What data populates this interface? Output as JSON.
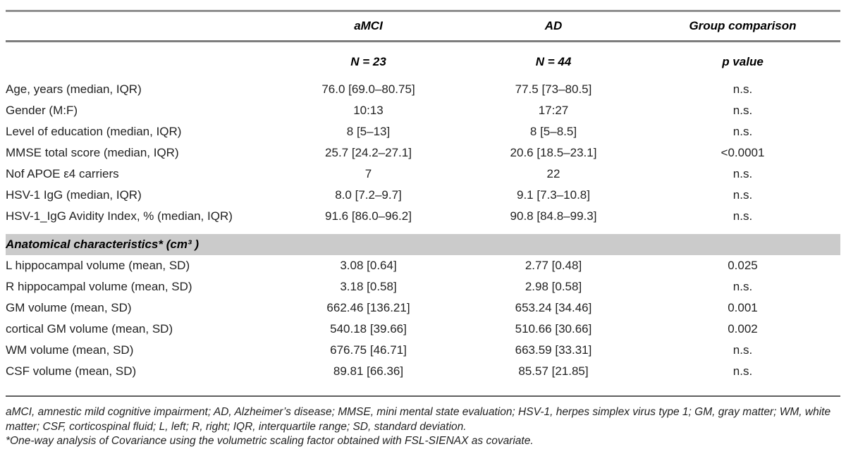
{
  "table": {
    "header": {
      "amci": "aMCI",
      "ad": "AD",
      "group": "Group comparison",
      "amci_n": "N = 23",
      "ad_n": "N = 44",
      "p": "p value"
    },
    "rows": [
      {
        "label": "Age, years (median, IQR)",
        "amci": "76.0 [69.0–80.75]",
        "ad": "77.5 [73–80.5]",
        "p": "n.s."
      },
      {
        "label": "Gender (M:F)",
        "amci": "10:13",
        "ad": "17:27",
        "p": "n.s."
      },
      {
        "label": "Level of education (median, IQR)",
        "amci": "8 [5–13]",
        "ad": "8 [5–8.5]",
        "p": "n.s."
      },
      {
        "label": "MMSE total score (median, IQR)",
        "amci": "25.7 [24.2–27.1]",
        "ad": "20.6 [18.5–23.1]",
        "p": "<0.0001"
      },
      {
        "label": "Nof APOE ε4 carriers",
        "amci": "7",
        "ad": "22",
        "p": "n.s."
      },
      {
        "label": "HSV-1 IgG (median, IQR)",
        "amci": "8.0 [7.2–9.7]",
        "ad": "9.1 [7.3–10.8]",
        "p": "n.s."
      },
      {
        "label": "HSV-1_IgG Avidity Index, % (median, IQR)",
        "amci": "91.6 [86.0–96.2]",
        "ad": "90.8 [84.8–99.3]",
        "p": "n.s."
      }
    ],
    "section_header": "Anatomical characteristics* (cm³ )",
    "anatomy_rows": [
      {
        "label": "L hippocampal volume (mean, SD)",
        "amci": "3.08 [0.64]",
        "ad": "2.77 [0.48]",
        "p": "0.025"
      },
      {
        "label": "R hippocampal volume (mean, SD)",
        "amci": "3.18 [0.58]",
        "ad": "2.98 [0.58]",
        "p": "n.s."
      },
      {
        "label": "GM volume (mean, SD)",
        "amci": "662.46 [136.21]",
        "ad": "653.24 [34.46]",
        "p": "0.001"
      },
      {
        "label": "cortical GM volume (mean, SD)",
        "amci": "540.18 [39.66]",
        "ad": "510.66 [30.66]",
        "p": "0.002"
      },
      {
        "label": "WM volume (mean, SD)",
        "amci": "676.75 [46.71]",
        "ad": "663.59 [33.31]",
        "p": "n.s."
      },
      {
        "label": "CSF volume (mean, SD)",
        "amci": "89.81 [66.36]",
        "ad": "85.57 [21.85]",
        "p": "n.s."
      }
    ]
  },
  "footnotes": {
    "abbreviations": "aMCI, amnestic mild cognitive impairment; AD, Alzheimer’s disease; MMSE, mini mental state evaluation; HSV-1, herpes simplex virus type 1; GM, gray matter; WM, white matter; CSF, corticospinal fluid; L, left; R, right; IQR, interquartile range; SD, standard deviation.",
    "covariate_note": "*One-way analysis of Covariance using the volumetric scaling factor obtained with FSL-SIENAX as covariate."
  }
}
